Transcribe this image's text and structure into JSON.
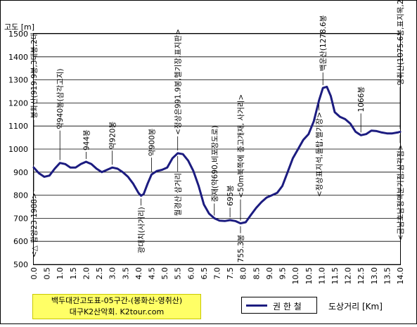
{
  "chart_data": {
    "type": "line",
    "ylabel": "고도 [m]",
    "xlabel": "도상거리 [Km]",
    "xlim": [
      0,
      14.0
    ],
    "ylim": [
      500,
      1500
    ],
    "x_ticks": [
      "0.0",
      "0.5",
      "1.0",
      "1.5",
      "2.0",
      "2.5",
      "3.0",
      "3.5",
      "4.0",
      "4.5",
      "5.0",
      "5.5",
      "6.0",
      "6.5",
      "7.0",
      "7.5",
      "8.0",
      "8.5",
      "9.0",
      "9.5",
      "10.0",
      "10.5",
      "11.0",
      "11.5",
      "12.0",
      "12.5",
      "13.0",
      "13.5",
      "14.0"
    ],
    "y_ticks": [
      "500",
      "600",
      "700",
      "800",
      "900",
      "1000",
      "1100",
      "1200",
      "1300",
      "1400",
      "1500"
    ],
    "grid": true,
    "series": [
      {
        "name": "권 한 철",
        "color": "#1c1c80",
        "points": [
          [
            0.0,
            920
          ],
          [
            0.2,
            895
          ],
          [
            0.4,
            880
          ],
          [
            0.6,
            885
          ],
          [
            0.8,
            915
          ],
          [
            1.0,
            940
          ],
          [
            1.2,
            935
          ],
          [
            1.4,
            920
          ],
          [
            1.6,
            920
          ],
          [
            1.8,
            935
          ],
          [
            2.0,
            945
          ],
          [
            2.2,
            935
          ],
          [
            2.4,
            915
          ],
          [
            2.6,
            900
          ],
          [
            2.8,
            910
          ],
          [
            3.0,
            920
          ],
          [
            3.2,
            915
          ],
          [
            3.4,
            900
          ],
          [
            3.6,
            880
          ],
          [
            3.8,
            850
          ],
          [
            4.0,
            810
          ],
          [
            4.1,
            798
          ],
          [
            4.2,
            805
          ],
          [
            4.35,
            850
          ],
          [
            4.5,
            890
          ],
          [
            4.7,
            905
          ],
          [
            4.9,
            910
          ],
          [
            5.1,
            920
          ],
          [
            5.3,
            960
          ],
          [
            5.5,
            982
          ],
          [
            5.7,
            978
          ],
          [
            5.9,
            950
          ],
          [
            6.1,
            905
          ],
          [
            6.3,
            840
          ],
          [
            6.5,
            760
          ],
          [
            6.7,
            720
          ],
          [
            6.9,
            700
          ],
          [
            7.1,
            690
          ],
          [
            7.3,
            688
          ],
          [
            7.5,
            692
          ],
          [
            7.7,
            688
          ],
          [
            7.9,
            678
          ],
          [
            8.1,
            683
          ],
          [
            8.3,
            715
          ],
          [
            8.5,
            745
          ],
          [
            8.7,
            770
          ],
          [
            8.9,
            790
          ],
          [
            9.1,
            800
          ],
          [
            9.3,
            810
          ],
          [
            9.5,
            840
          ],
          [
            9.7,
            900
          ],
          [
            9.9,
            960
          ],
          [
            10.1,
            1000
          ],
          [
            10.3,
            1040
          ],
          [
            10.5,
            1065
          ],
          [
            10.7,
            1120
          ],
          [
            10.9,
            1210
          ],
          [
            11.05,
            1265
          ],
          [
            11.2,
            1270
          ],
          [
            11.35,
            1230
          ],
          [
            11.5,
            1160
          ],
          [
            11.7,
            1140
          ],
          [
            11.9,
            1130
          ],
          [
            12.1,
            1110
          ],
          [
            12.3,
            1075
          ],
          [
            12.5,
            1060
          ],
          [
            12.7,
            1065
          ],
          [
            12.9,
            1080
          ],
          [
            13.1,
            1078
          ],
          [
            13.3,
            1072
          ],
          [
            13.5,
            1068
          ],
          [
            13.7,
            1068
          ],
          [
            13.9,
            1072
          ],
          [
            14.0,
            1075
          ]
        ]
      }
    ],
    "annotations": [
      {
        "x": 0.0,
        "y": 920,
        "text": "봉화산(919.9봉,3대봉,2대",
        "side": "above",
        "ext": 62
      },
      {
        "x": 0.0,
        "y": 920,
        "text": "<△ 함양23 1988>",
        "side": "below",
        "ext": 28
      },
      {
        "x": 1.0,
        "y": 940,
        "text": "약940봉(삼각고지)",
        "side": "above",
        "ext": 40
      },
      {
        "x": 2.0,
        "y": 945,
        "text": "944봉",
        "side": "above",
        "ext": 8
      },
      {
        "x": 3.0,
        "y": 920,
        "text": "약920봉",
        "side": "above",
        "ext": 18
      },
      {
        "x": 4.1,
        "y": 798,
        "text": "광대치(사거리)",
        "side": "below",
        "ext": 8
      },
      {
        "x": 4.5,
        "y": 890,
        "text": "약900봉",
        "side": "above",
        "ext": 18
      },
      {
        "x": 5.5,
        "y": 982,
        "text": "<정상은991.9봉,헬기장,표지판>",
        "side": "above",
        "ext": 18
      },
      {
        "x": 5.5,
        "y": 982,
        "text": "월경산 삼거리",
        "side": "below",
        "ext": 20
      },
      {
        "x": 6.9,
        "y": 700,
        "text": "중재(약690,비포장도로)",
        "side": "above",
        "ext": 15
      },
      {
        "x": 7.5,
        "y": 692,
        "text": "695봉",
        "side": "above",
        "ext": 12
      },
      {
        "x": 7.9,
        "y": 678,
        "text": "<50m북쪽에 중고개재, 사거리>",
        "side": "above",
        "ext": 28
      },
      {
        "x": 7.9,
        "y": 678,
        "text": "755.3봉",
        "side": "below",
        "ext": 8
      },
      {
        "x": 10.9,
        "y": 1210,
        "text": "<정상표지석,돌탑,헬기장>",
        "side": "below",
        "ext": 8
      },
      {
        "x": 11.05,
        "y": 1265,
        "text": "백운산(1278.6봉",
        "side": "above",
        "ext": 16
      },
      {
        "x": 12.5,
        "y": 1060,
        "text": "1066봉",
        "side": "above",
        "ext": 25
      },
      {
        "x": 14.0,
        "y": 1075,
        "text": "영취산(1075.6봉,표지목,2대",
        "side": "above",
        "ext": 58
      },
      {
        "x": 14.0,
        "y": 1075,
        "text": "<금남호남정맥분기점,삼각점>",
        "side": "below",
        "ext": 10
      }
    ]
  },
  "footer": {
    "title": "백두대간고도표-05구간-(봉화산-영취산)",
    "credit": "대구K2산악회. K2tour.com"
  }
}
